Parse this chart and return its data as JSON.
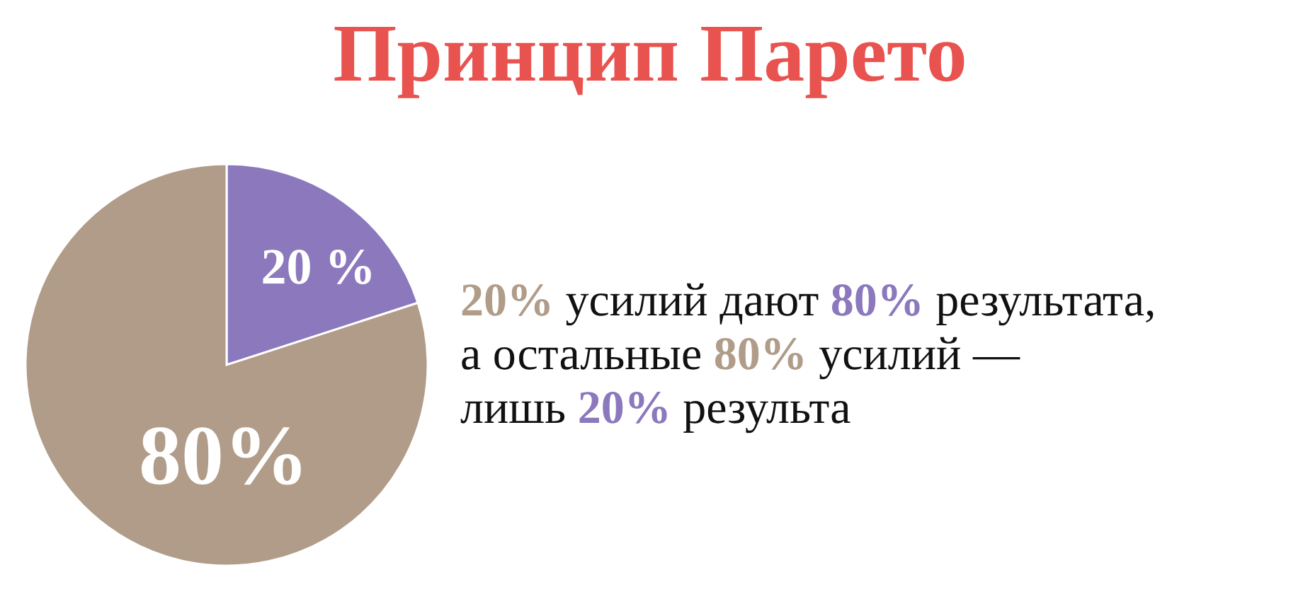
{
  "chart_data": {
    "type": "pie",
    "title": "Принцип Парето",
    "categories": [
      null,
      null
    ],
    "values": [
      20,
      80
    ],
    "colors": [
      "#8b78bd",
      "#b09c89"
    ],
    "value_labels": [
      "20 %",
      "80%"
    ],
    "annotations": [
      "20% усилий дают 80% результата,",
      "а остальные 80% усилий —",
      "лишь 20% результа"
    ]
  }
}
